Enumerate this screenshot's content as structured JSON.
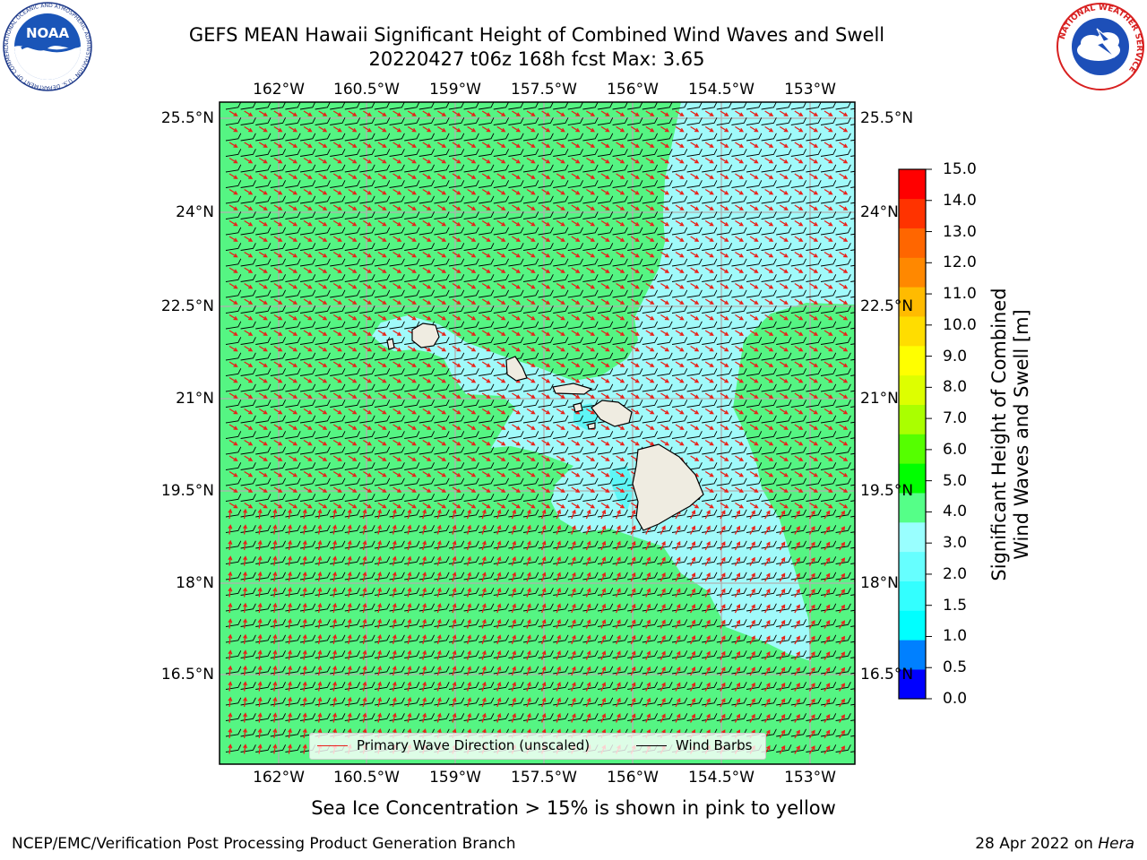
{
  "title": {
    "line1": "GEFS MEAN Hawaii Significant Height of Combined Wind Waves and Swell",
    "line2": "20220427 t06z 168h fcst   Max: 3.65"
  },
  "longitude_labels": [
    "162°W",
    "160.5°W",
    "159°W",
    "157.5°W",
    "156°W",
    "154.5°W",
    "153°W"
  ],
  "latitude_labels": [
    "25.5°N",
    "24°N",
    "22.5°N",
    "21°N",
    "19.5°N",
    "18°N",
    "16.5°N"
  ],
  "colorbar": {
    "title_line1": "Significant Height of Combined",
    "title_line2": "Wind Waves and Swell [m]",
    "ticks": [
      "15.0",
      "14.0",
      "13.0",
      "12.0",
      "11.0",
      "10.0",
      "9.0",
      "8.0",
      "7.0",
      "6.0",
      "5.0",
      "4.0",
      "3.0",
      "2.0",
      "1.5",
      "1.0",
      "0.5",
      "0.0"
    ],
    "colors": [
      "#0000ff",
      "#0080ff",
      "#00ffff",
      "#33ffff",
      "#66ffff",
      "#99ffff",
      "#55ff88",
      "#00ff00",
      "#55ff00",
      "#aaff00",
      "#ddff00",
      "#ffff00",
      "#ffdd00",
      "#ffbb00",
      "#ff8800",
      "#ff6600",
      "#ff3300",
      "#ff0000"
    ]
  },
  "map_colors": {
    "sea_3_4": "#55f583",
    "sea_2_3": "#a0fafa",
    "sea_1_5_2": "#5ef6f6",
    "land": "#efece1",
    "wave_arrow": "#e8201a",
    "wind_barb": "#000000"
  },
  "legend": {
    "wave_direction": "Primary Wave Direction (unscaled)",
    "wind_barbs": "Wind Barbs"
  },
  "subtitle": "Sea Ice Concentration > 15% is shown in pink to yellow",
  "footer": {
    "left": "NCEP/EMC/Verification Post Processing Product Generation Branch",
    "right_prefix": "28 Apr 2022 on ",
    "right_machine": "Hera"
  },
  "logos": {
    "noaa_text": "NOAA",
    "noaa_ring_text": "NATIONAL OCEANIC AND ATMOSPHERIC ADMINISTRATION · U.S. DEPARTMENT OF COMMERCE",
    "nws_ring_text": "NATIONAL WEATHER SERVICE"
  }
}
